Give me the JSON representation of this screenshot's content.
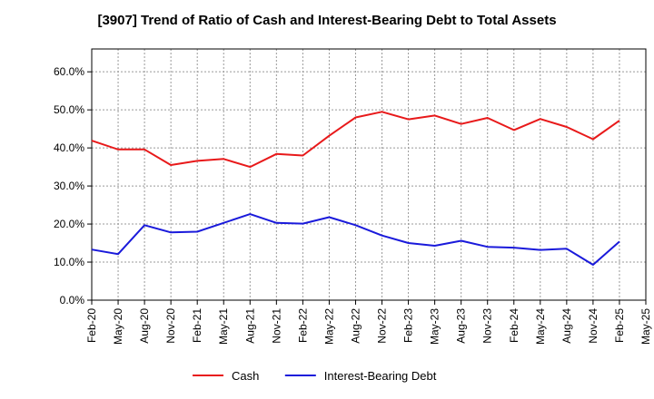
{
  "chart_data": {
    "type": "line",
    "title": "[3907]  Trend of Ratio of Cash and Interest-Bearing Debt to Total Assets",
    "x": [
      "Feb-20",
      "May-20",
      "Aug-20",
      "Nov-20",
      "Feb-21",
      "May-21",
      "Aug-21",
      "Nov-21",
      "Feb-22",
      "May-22",
      "Aug-22",
      "Nov-22",
      "Feb-23",
      "May-23",
      "Aug-23",
      "Nov-23",
      "Feb-24",
      "May-24",
      "Aug-24",
      "Nov-24",
      "Feb-25",
      "May-25"
    ],
    "x_tick_labels": [
      "Feb-20",
      "May-20",
      "Aug-20",
      "Nov-20",
      "Feb-21",
      "May-21",
      "Aug-21",
      "Nov-21",
      "Feb-22",
      "May-22",
      "Aug-22",
      "Nov-22",
      "Feb-23",
      "May-23",
      "Aug-23",
      "Nov-23",
      "Feb-24",
      "May-24",
      "Aug-24",
      "Nov-24",
      "Feb-25",
      "May-25"
    ],
    "y_tick_labels": [
      "0.0%",
      "10.0%",
      "20.0%",
      "30.0%",
      "40.0%",
      "50.0%",
      "60.0%"
    ],
    "ylim": [
      0,
      66
    ],
    "y_ticks": [
      0,
      10,
      20,
      30,
      40,
      50,
      60
    ],
    "grid": true,
    "legend_position": "bottom-center",
    "series": [
      {
        "name": "Cash",
        "color": "#e8191a",
        "values": [
          41.9,
          39.6,
          39.6,
          35.5,
          36.6,
          37.1,
          35.0,
          38.4,
          38.0,
          43.2,
          48.0,
          49.5,
          47.5,
          48.5,
          46.3,
          47.9,
          44.7,
          47.6,
          45.5,
          42.3,
          47.2,
          null
        ]
      },
      {
        "name": "Interest-Bearing Debt",
        "color": "#1a1adb",
        "values": [
          13.3,
          12.1,
          19.7,
          17.8,
          18.0,
          20.3,
          22.6,
          20.3,
          20.1,
          21.8,
          19.7,
          17.0,
          15.0,
          14.3,
          15.6,
          14.0,
          13.8,
          13.2,
          13.5,
          9.3,
          15.4,
          null
        ]
      }
    ]
  }
}
